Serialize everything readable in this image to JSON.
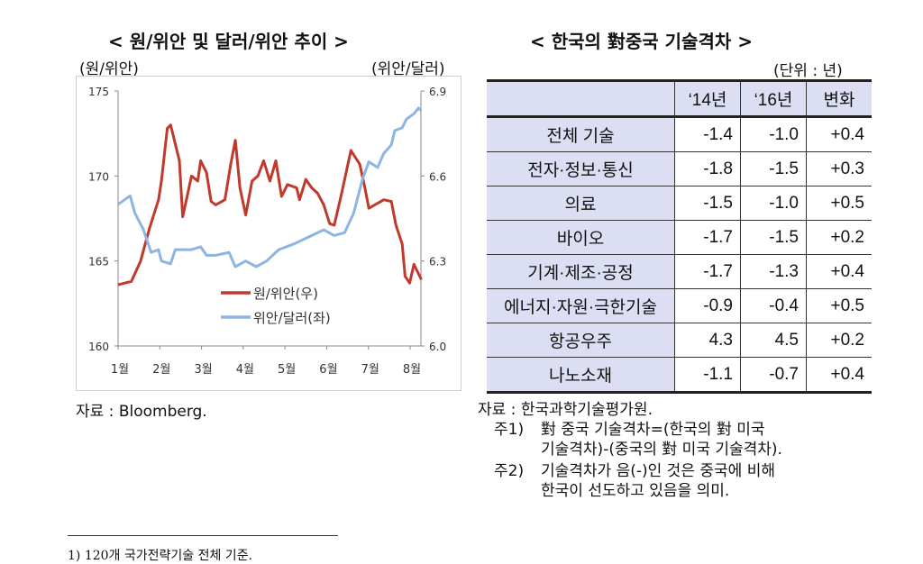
{
  "chart_title": "< 원/위안 및 달러/위안 추이 >",
  "table_title": "< 한국의 對중국 기술격차 >",
  "chart_data": {
    "type": "line",
    "title": "원/위안 및 달러/위안 추이",
    "ylabel_left": "(원/위안)",
    "ylabel_right": "(위안/달러)",
    "ylim_left": [
      160,
      175
    ],
    "ylim_right": [
      6.0,
      6.9
    ],
    "yticks_left": [
      "175",
      "170",
      "165",
      "160"
    ],
    "yticks_right": [
      "6.9",
      "6.6",
      "6.3",
      "6.0"
    ],
    "xticks": [
      "1월",
      "2월",
      "3월",
      "4월",
      "5월",
      "6월",
      "7월",
      "8월"
    ],
    "legend": "center",
    "series": [
      {
        "name": "원/위안(우)",
        "axis": "left",
        "color": "#c0392b",
        "x": [
          1.0,
          1.32,
          1.54,
          1.75,
          1.97,
          2.04,
          2.18,
          2.26,
          2.37,
          2.47,
          2.55,
          2.76,
          2.91,
          2.98,
          3.12,
          3.23,
          3.34,
          3.56,
          3.7,
          3.81,
          3.92,
          4.06,
          4.21,
          4.35,
          4.49,
          4.64,
          4.78,
          4.92,
          5.06,
          5.28,
          5.35,
          5.5,
          5.64,
          5.78,
          5.93,
          6.07,
          6.18,
          6.36,
          6.58,
          6.79,
          6.9,
          7.01,
          7.15,
          7.37,
          7.55,
          7.66,
          7.81,
          7.88,
          7.99,
          8.09,
          8.27
        ],
        "y": [
          163.6,
          163.8,
          165.0,
          166.9,
          168.6,
          169.7,
          172.8,
          173.0,
          171.9,
          170.9,
          167.6,
          170.0,
          169.7,
          170.9,
          170.2,
          168.5,
          168.3,
          168.6,
          170.7,
          172.1,
          169.3,
          167.7,
          169.7,
          170.0,
          170.9,
          169.7,
          170.9,
          168.8,
          169.5,
          169.3,
          168.6,
          169.8,
          169.3,
          169.0,
          168.3,
          167.2,
          167.1,
          169.0,
          171.5,
          170.7,
          169.5,
          168.1,
          168.3,
          168.6,
          168.5,
          167.1,
          166.0,
          164.1,
          163.7,
          164.8,
          163.9
        ]
      },
      {
        "name": "위안/달러(좌)",
        "axis": "right",
        "color": "#8db4e2",
        "x": [
          1.0,
          1.29,
          1.4,
          1.61,
          1.79,
          1.97,
          2.04,
          2.26,
          2.37,
          2.76,
          2.98,
          3.12,
          3.34,
          3.66,
          3.81,
          4.06,
          4.31,
          4.56,
          4.85,
          5.21,
          5.5,
          5.93,
          6.18,
          6.43,
          6.65,
          6.86,
          7.01,
          7.22,
          7.37,
          7.55,
          7.63,
          7.81,
          7.91,
          8.09,
          8.2,
          8.27
        ],
        "y": [
          6.5,
          6.53,
          6.47,
          6.41,
          6.33,
          6.34,
          6.3,
          6.29,
          6.34,
          6.34,
          6.35,
          6.32,
          6.32,
          6.33,
          6.28,
          6.3,
          6.28,
          6.3,
          6.34,
          6.36,
          6.38,
          6.41,
          6.39,
          6.4,
          6.47,
          6.59,
          6.65,
          6.63,
          6.68,
          6.71,
          6.76,
          6.77,
          6.8,
          6.82,
          6.84,
          6.83
        ]
      }
    ]
  },
  "chart_source": "자료 : Bloomberg.",
  "table": {
    "unit": "(단위 : 년)",
    "headers": [
      "",
      "‘14년",
      "‘16년",
      "변화"
    ],
    "rows": [
      [
        "전체 기술",
        "-1.4",
        "-1.0",
        "+0.4"
      ],
      [
        "전자·정보·통신",
        "-1.8",
        "-1.5",
        "+0.3"
      ],
      [
        "의료",
        "-1.5",
        "-1.0",
        "+0.5"
      ],
      [
        "바이오",
        "-1.7",
        "-1.5",
        "+0.2"
      ],
      [
        "기계·제조·공정",
        "-1.7",
        "-1.3",
        "+0.4"
      ],
      [
        "에너지·자원·극한기술",
        "-0.9",
        "-0.4",
        "+0.5"
      ],
      [
        "항공우주",
        "4.3",
        "4.5",
        "+0.2"
      ],
      [
        "나노소재",
        "-1.1",
        "-0.7",
        "+0.4"
      ]
    ]
  },
  "table_notes": {
    "source": "자료 : 한국과학기술평가원.",
    "note1_label": "주1)",
    "note1_line1": "對 중국 기술격차=(한국의 對 미국",
    "note1_line2": "기술격차)-(중국의 對 미국 기술격차).",
    "note2_label": "주2)",
    "note2_line1": "기술격차가 음(-)인 것은 중국에 비해",
    "note2_line2": "한국이 선도하고 있음을 의미."
  },
  "footnote": "1) 120개 국가전략기술 전체 기준."
}
